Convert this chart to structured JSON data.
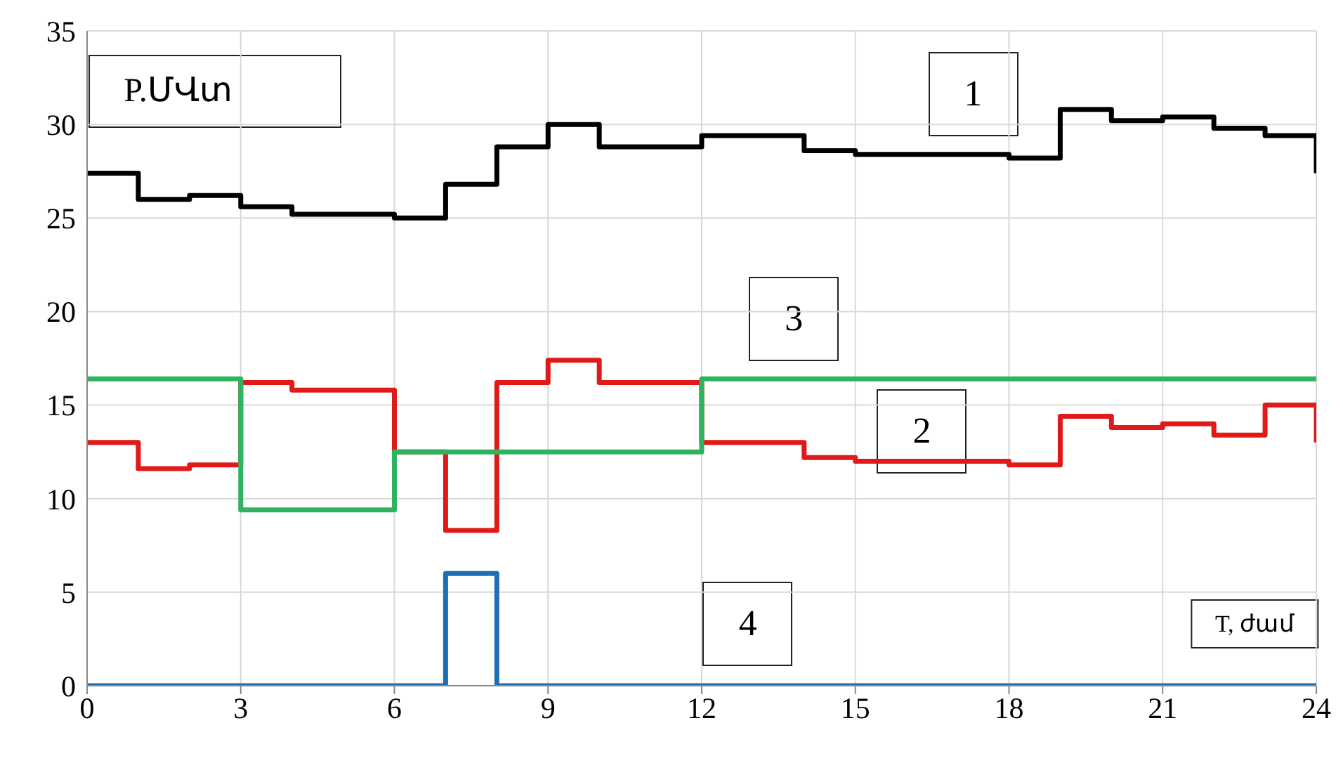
{
  "chart_data": {
    "type": "step",
    "xlabel": "T, ժամ",
    "ylabel": "P.ՄՎտ",
    "x": [
      0,
      1,
      2,
      3,
      4,
      5,
      6,
      7,
      8,
      9,
      10,
      11,
      12,
      13,
      14,
      15,
      16,
      17,
      18,
      19,
      20,
      21,
      22,
      23,
      24
    ],
    "series": [
      {
        "name": "1",
        "color": "#000000",
        "values": [
          27.4,
          26.0,
          26.2,
          25.6,
          25.2,
          25.2,
          25.0,
          26.8,
          28.8,
          30.0,
          28.8,
          28.8,
          29.4,
          29.4,
          28.6,
          28.4,
          28.4,
          28.4,
          28.2,
          30.8,
          30.2,
          30.4,
          29.8,
          29.4,
          27.4
        ]
      },
      {
        "name": "2",
        "color": "#e01a1a",
        "values": [
          13.0,
          11.6,
          11.8,
          16.2,
          15.8,
          15.8,
          12.5,
          8.3,
          16.2,
          17.4,
          16.2,
          16.2,
          13.0,
          13.0,
          12.2,
          12.0,
          12.0,
          12.0,
          11.8,
          14.4,
          13.8,
          14.0,
          13.4,
          15.0,
          13.0
        ]
      },
      {
        "name": "3",
        "color": "#2eb35e",
        "values": [
          16.4,
          16.4,
          16.4,
          9.4,
          9.4,
          9.4,
          12.5,
          12.5,
          12.5,
          12.5,
          12.5,
          12.5,
          16.4,
          16.4,
          16.4,
          16.4,
          16.4,
          16.4,
          16.4,
          16.4,
          16.4,
          16.4,
          16.4,
          16.4,
          16.4
        ]
      },
      {
        "name": "4",
        "color": "#1f6fb5",
        "values": [
          0,
          0,
          0,
          0,
          0,
          0,
          0,
          6,
          0,
          0,
          0,
          0,
          0,
          0,
          0,
          0,
          0,
          0,
          0,
          0,
          0,
          0,
          0,
          0,
          0
        ]
      }
    ],
    "xlim": [
      0,
      24
    ],
    "xticks": [
      0,
      3,
      6,
      9,
      12,
      15,
      18,
      21,
      24
    ],
    "ylim": [
      0,
      35
    ],
    "yticks": [
      0,
      5,
      10,
      15,
      20,
      25,
      30,
      35
    ],
    "grid": true,
    "marker": "none",
    "line_style": "solid"
  }
}
